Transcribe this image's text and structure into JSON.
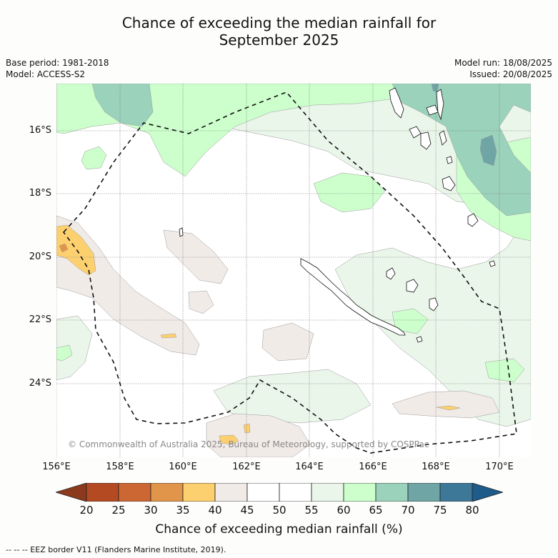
{
  "title": {
    "line1": "Chance of exceeding the median rainfall for",
    "line2": "September 2025"
  },
  "meta": {
    "base_period": "Base period: 1981-2018",
    "model": "Model: ACCESS-S2",
    "model_run": "Model run: 18/08/2025",
    "issued": "Issued: 20/08/2025"
  },
  "map": {
    "lat_labels": [
      "16°S",
      "18°S",
      "20°S",
      "22°S",
      "24°S"
    ],
    "lon_labels": [
      "156°E",
      "158°E",
      "160°E",
      "162°E",
      "164°E",
      "166°E",
      "168°E",
      "170°E"
    ],
    "copyright": "© Commonwealth of Australia 2025, Bureau of Meteorology, supported by COSPPac",
    "eez_color": "#111111"
  },
  "colorbar": {
    "ticks": [
      "20",
      "25",
      "30",
      "35",
      "40",
      "45",
      "50",
      "55",
      "60",
      "65",
      "70",
      "75",
      "80"
    ],
    "colors": [
      "#8b3a1e",
      "#b44a22",
      "#cc6633",
      "#e0954a",
      "#fdd06f",
      "#f1ebe8",
      "#ffffff",
      "#ffffff",
      "#eaf6ea",
      "#ccffcc",
      "#9bd2bb",
      "#6fa5a5",
      "#3e7899",
      "#1e5a8a"
    ],
    "label": "Chance of exceeding median rainfall (%)"
  },
  "legend_note": "--  --  -- EEZ border V11 (Flanders Marine Institute, 2019)."
}
